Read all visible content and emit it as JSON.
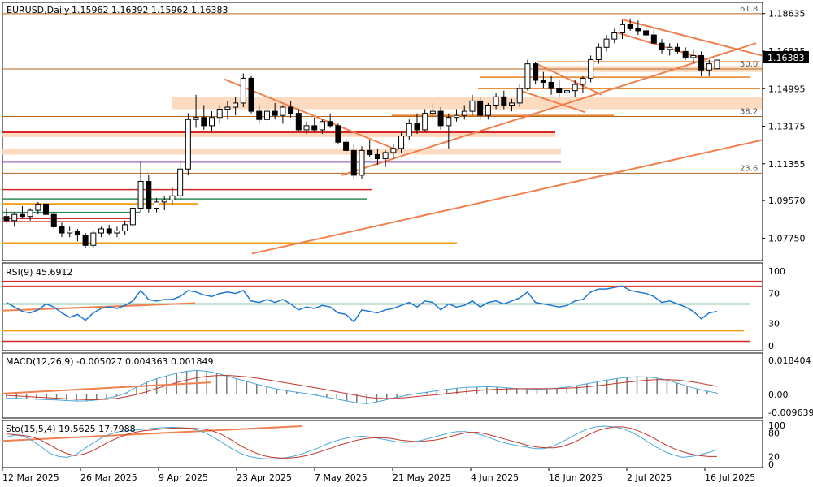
{
  "chart_data": {
    "type": "candlestick",
    "symbol_label": "EURUSD,Daily",
    "ohlc_label": "1.15962 1.16392 1.15962 1.16383",
    "current_price_label": "1.16383",
    "price_axis": {
      "ticks": [
        "1.18635",
        "1.16815",
        "1.14995",
        "1.13175",
        "1.11355",
        "1.09570",
        "1.07750"
      ],
      "range": [
        1.069,
        1.189
      ]
    },
    "fib_levels": [
      {
        "label": "61.8",
        "price": 1.1863
      },
      {
        "label": "50.0",
        "price": 1.1595
      },
      {
        "label": "38.2",
        "price": 1.1365
      },
      {
        "label": "23.6",
        "price": 1.109
      }
    ],
    "x_axis_labels": [
      "12 Mar 2025",
      "26 Mar 2025",
      "9 Apr 2025",
      "23 Apr 2025",
      "7 May 2025",
      "21 May 2025",
      "4 Jun 2025",
      "18 Jun 2025",
      "2 Jul 2025",
      "16 Jul 2025"
    ],
    "candles": [
      [
        1.088,
        1.092,
        1.085,
        1.086
      ],
      [
        1.086,
        1.09,
        1.083,
        1.089
      ],
      [
        1.089,
        1.093,
        1.087,
        1.088
      ],
      [
        1.088,
        1.092,
        1.086,
        1.091
      ],
      [
        1.091,
        1.095,
        1.089,
        1.094
      ],
      [
        1.094,
        1.096,
        1.088,
        1.089
      ],
      [
        1.089,
        1.09,
        1.082,
        1.083
      ],
      [
        1.083,
        1.085,
        1.078,
        1.08
      ],
      [
        1.08,
        1.083,
        1.078,
        1.081
      ],
      [
        1.081,
        1.082,
        1.076,
        1.079
      ],
      [
        1.079,
        1.08,
        1.073,
        1.074
      ],
      [
        1.074,
        1.081,
        1.073,
        1.08
      ],
      [
        1.08,
        1.083,
        1.078,
        1.082
      ],
      [
        1.082,
        1.084,
        1.079,
        1.08
      ],
      [
        1.08,
        1.083,
        1.078,
        1.081
      ],
      [
        1.081,
        1.086,
        1.079,
        1.084
      ],
      [
        1.084,
        1.093,
        1.083,
        1.092
      ],
      [
        1.092,
        1.115,
        1.09,
        1.105
      ],
      [
        1.105,
        1.108,
        1.09,
        1.092
      ],
      [
        1.092,
        1.097,
        1.09,
        1.095
      ],
      [
        1.095,
        1.098,
        1.091,
        1.096
      ],
      [
        1.096,
        1.102,
        1.094,
        1.098
      ],
      [
        1.098,
        1.115,
        1.096,
        1.111
      ],
      [
        1.111,
        1.138,
        1.108,
        1.135
      ],
      [
        1.135,
        1.147,
        1.131,
        1.136
      ],
      [
        1.136,
        1.142,
        1.13,
        1.132
      ],
      [
        1.132,
        1.139,
        1.129,
        1.136
      ],
      [
        1.136,
        1.142,
        1.133,
        1.14
      ],
      [
        1.14,
        1.144,
        1.135,
        1.141
      ],
      [
        1.141,
        1.146,
        1.137,
        1.143
      ],
      [
        1.143,
        1.1573,
        1.141,
        1.155
      ],
      [
        1.155,
        1.156,
        1.138,
        1.139
      ],
      [
        1.139,
        1.142,
        1.133,
        1.135
      ],
      [
        1.135,
        1.141,
        1.132,
        1.139
      ],
      [
        1.139,
        1.143,
        1.135,
        1.137
      ],
      [
        1.137,
        1.142,
        1.133,
        1.141
      ],
      [
        1.141,
        1.144,
        1.136,
        1.138
      ],
      [
        1.138,
        1.14,
        1.129,
        1.13
      ],
      [
        1.13,
        1.134,
        1.128,
        1.132
      ],
      [
        1.132,
        1.136,
        1.129,
        1.13
      ],
      [
        1.13,
        1.135,
        1.128,
        1.134
      ],
      [
        1.134,
        1.138,
        1.131,
        1.132
      ],
      [
        1.132,
        1.133,
        1.123,
        1.124
      ],
      [
        1.124,
        1.126,
        1.118,
        1.12
      ],
      [
        1.12,
        1.123,
        1.106,
        1.108
      ],
      [
        1.108,
        1.122,
        1.106,
        1.12
      ],
      [
        1.12,
        1.125,
        1.117,
        1.118
      ],
      [
        1.118,
        1.121,
        1.113,
        1.116
      ],
      [
        1.116,
        1.12,
        1.112,
        1.119
      ],
      [
        1.119,
        1.123,
        1.116,
        1.121
      ],
      [
        1.121,
        1.129,
        1.119,
        1.127
      ],
      [
        1.127,
        1.135,
        1.125,
        1.133
      ],
      [
        1.133,
        1.138,
        1.128,
        1.13
      ],
      [
        1.13,
        1.14,
        1.129,
        1.138
      ],
      [
        1.138,
        1.143,
        1.135,
        1.139
      ],
      [
        1.139,
        1.141,
        1.13,
        1.132
      ],
      [
        1.132,
        1.138,
        1.121,
        1.136
      ],
      [
        1.136,
        1.14,
        1.134,
        1.137
      ],
      [
        1.137,
        1.142,
        1.135,
        1.139
      ],
      [
        1.139,
        1.147,
        1.137,
        1.144
      ],
      [
        1.144,
        1.146,
        1.135,
        1.137
      ],
      [
        1.137,
        1.143,
        1.135,
        1.142
      ],
      [
        1.142,
        1.148,
        1.14,
        1.146
      ],
      [
        1.146,
        1.149,
        1.14,
        1.142
      ],
      [
        1.142,
        1.145,
        1.139,
        1.143
      ],
      [
        1.143,
        1.152,
        1.141,
        1.15
      ],
      [
        1.15,
        1.164,
        1.149,
        1.162
      ],
      [
        1.162,
        1.163,
        1.152,
        1.154
      ],
      [
        1.154,
        1.158,
        1.15,
        1.153
      ],
      [
        1.153,
        1.156,
        1.147,
        1.15
      ],
      [
        1.15,
        1.154,
        1.146,
        1.148
      ],
      [
        1.148,
        1.151,
        1.144,
        1.149
      ],
      [
        1.149,
        1.154,
        1.146,
        1.152
      ],
      [
        1.152,
        1.156,
        1.148,
        1.155
      ],
      [
        1.155,
        1.166,
        1.153,
        1.164
      ],
      [
        1.164,
        1.172,
        1.162,
        1.17
      ],
      [
        1.17,
        1.176,
        1.168,
        1.174
      ],
      [
        1.174,
        1.179,
        1.172,
        1.177
      ],
      [
        1.177,
        1.183,
        1.174,
        1.181
      ],
      [
        1.181,
        1.184,
        1.178,
        1.179
      ],
      [
        1.179,
        1.183,
        1.176,
        1.178
      ],
      [
        1.178,
        1.181,
        1.174,
        1.176
      ],
      [
        1.176,
        1.179,
        1.173,
        1.172
      ],
      [
        1.172,
        1.174,
        1.167,
        1.169
      ],
      [
        1.169,
        1.172,
        1.166,
        1.17
      ],
      [
        1.17,
        1.172,
        1.167,
        1.168
      ],
      [
        1.168,
        1.17,
        1.164,
        1.165
      ],
      [
        1.165,
        1.169,
        1.162,
        1.166
      ],
      [
        1.166,
        1.168,
        1.156,
        1.159
      ],
      [
        1.159,
        1.164,
        1.156,
        1.162
      ],
      [
        1.1596,
        1.1639,
        1.1596,
        1.1638
      ]
    ],
    "rsi": {
      "label": "RSI(9) 45.6912",
      "ticks": [
        "100",
        "70",
        "30",
        "0"
      ],
      "values": [
        58,
        52,
        46,
        44,
        48,
        56,
        52,
        44,
        38,
        42,
        34,
        44,
        50,
        52,
        50,
        54,
        60,
        74,
        62,
        60,
        62,
        62,
        66,
        74,
        72,
        68,
        66,
        70,
        72,
        70,
        74,
        60,
        58,
        62,
        58,
        62,
        56,
        48,
        52,
        50,
        54,
        52,
        44,
        42,
        32,
        48,
        46,
        44,
        48,
        50,
        54,
        58,
        52,
        60,
        58,
        48,
        56,
        52,
        54,
        60,
        52,
        58,
        60,
        56,
        60,
        64,
        72,
        58,
        56,
        54,
        52,
        54,
        60,
        62,
        72,
        76,
        76,
        78,
        80,
        74,
        72,
        70,
        66,
        58,
        60,
        56,
        52,
        46,
        36,
        44,
        46
      ]
    },
    "macd": {
      "label": "MACD(12,26,9) -0.005027 0.004363 0.001849",
      "ticks": [
        "0.018404",
        "0.00",
        "-0.009639"
      ],
      "macd_values": [
        -0.002,
        -0.0021,
        -0.0023,
        -0.0026,
        -0.0028,
        -0.003,
        -0.0033,
        -0.0035,
        -0.0035,
        -0.003,
        -0.002,
        -0.001,
        0.001,
        0.004,
        0.0065,
        0.0085,
        0.01,
        0.0115,
        0.0125,
        0.013,
        0.0125,
        0.0115,
        0.01,
        0.0085,
        0.007,
        0.0055,
        0.0042,
        0.003,
        0.002,
        0.0012,
        0.0005,
        -0.0005,
        -0.0015,
        -0.0025,
        -0.0035,
        -0.0045,
        -0.005,
        -0.004,
        -0.0028,
        -0.0015,
        -0.0005,
        0.0005,
        0.0012,
        0.002,
        0.0028,
        0.0034,
        0.0038,
        0.004,
        0.0042,
        0.004,
        0.0036,
        0.0032,
        0.003,
        0.0028,
        0.003,
        0.0034,
        0.004,
        0.0048,
        0.0058,
        0.0068,
        0.0078,
        0.0086,
        0.0092,
        0.0096,
        0.0094,
        0.0088,
        0.0078,
        0.0062,
        0.0045,
        0.003,
        0.0018,
        0.0008
      ],
      "signal_values": [
        -0.0005,
        -0.0008,
        -0.0011,
        -0.0014,
        -0.0017,
        -0.002,
        -0.0023,
        -0.0026,
        -0.0028,
        -0.0028,
        -0.0026,
        -0.0021,
        -0.0012,
        0.0,
        0.0015,
        0.0032,
        0.0048,
        0.0064,
        0.0078,
        0.009,
        0.0098,
        0.0102,
        0.0103,
        0.01,
        0.0095,
        0.0088,
        0.008,
        0.0071,
        0.0062,
        0.0053,
        0.0044,
        0.0035,
        0.0025,
        0.0015,
        0.0005,
        -0.0005,
        -0.0014,
        -0.002,
        -0.0022,
        -0.002,
        -0.0016,
        -0.0011,
        -0.0006,
        -0.0001,
        0.0005,
        0.0011,
        0.0016,
        0.0021,
        0.0025,
        0.0028,
        0.003,
        0.0031,
        0.0031,
        0.0031,
        0.0031,
        0.0032,
        0.0034,
        0.0037,
        0.0041,
        0.0047,
        0.0053,
        0.006,
        0.0066,
        0.0072,
        0.0077,
        0.008,
        0.008,
        0.0078,
        0.0072,
        0.0064,
        0.0054,
        0.0044
      ]
    },
    "stochastic": {
      "label": "Sto(15,5,4) 19.5625 17.7988",
      "ticks": [
        "100",
        "80",
        "20",
        "0"
      ],
      "k_values": [
        70,
        75,
        72,
        60,
        45,
        28,
        20,
        18,
        25,
        40,
        55,
        68,
        78,
        84,
        86,
        88,
        90,
        92,
        94,
        95,
        94,
        92,
        88,
        80,
        68,
        54,
        40,
        28,
        20,
        16,
        14,
        14,
        16,
        20,
        26,
        34,
        42,
        52,
        60,
        66,
        70,
        72,
        70,
        66,
        62,
        58,
        56,
        58,
        62,
        68,
        74,
        80,
        84,
        84,
        80,
        74,
        66,
        58,
        52,
        48,
        44,
        40,
        40,
        46,
        56,
        68,
        80,
        90,
        96,
        98,
        96,
        92,
        84,
        72,
        58,
        44,
        32,
        24,
        18,
        20,
        24,
        30,
        38
      ],
      "d_values": [
        78,
        76,
        74,
        70,
        62,
        50,
        38,
        28,
        22,
        26,
        34,
        46,
        58,
        68,
        76,
        82,
        86,
        88,
        90,
        92,
        93,
        93,
        92,
        90,
        86,
        78,
        66,
        52,
        40,
        30,
        22,
        18,
        16,
        16,
        18,
        22,
        28,
        35,
        42,
        50,
        56,
        62,
        66,
        68,
        68,
        66,
        62,
        60,
        58,
        60,
        62,
        66,
        72,
        78,
        82,
        82,
        78,
        72,
        66,
        60,
        54,
        48,
        44,
        42,
        42,
        46,
        54,
        64,
        76,
        86,
        92,
        96,
        96,
        92,
        84,
        74,
        62,
        50,
        40,
        32,
        26,
        22,
        20,
        20
      ]
    }
  }
}
